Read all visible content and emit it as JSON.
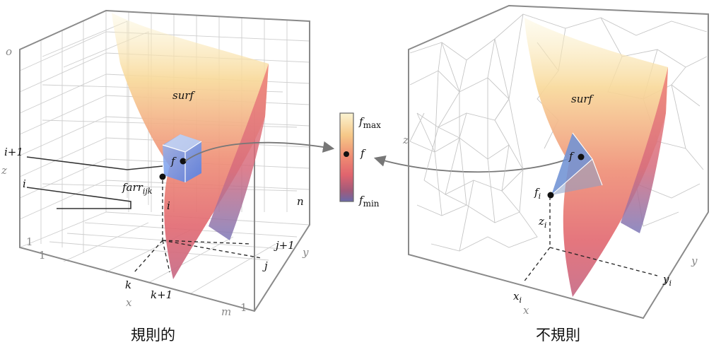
{
  "left_panel": {
    "caption": "規則的",
    "surface_label": "surf",
    "point_label": "f",
    "grid_point_label": "farr",
    "grid_point_sub": "ijk",
    "axis_labels": {
      "x": "x",
      "y": "y",
      "z": "z"
    },
    "index_labels": {
      "o": "o",
      "i_plus_1": "i+1",
      "i": "i",
      "one_z": "1",
      "one_x": "1",
      "k": "k",
      "k_plus_1": "k+1",
      "m": "m",
      "one_y": "1",
      "j": "j",
      "j_plus_1": "j+1",
      "n": "n",
      "i_inner": "i"
    }
  },
  "colorbar": {
    "max_label": "f",
    "max_sub": "max",
    "mid_label": "f",
    "min_label": "f",
    "min_sub": "min",
    "colors": [
      "#fbf4d2",
      "#f6c888",
      "#ee8a72",
      "#e0646e",
      "#a05a7a",
      "#6a6aaa"
    ]
  },
  "right_panel": {
    "caption": "不規則",
    "surface_label": "surf",
    "point_label": "f",
    "sample_label": "f",
    "sample_sub": "i",
    "z_sample_label": "z",
    "z_sample_sub": "i",
    "x_sample_label": "x",
    "x_sample_sub": "i",
    "y_sample_label": "y",
    "y_sample_sub": "i",
    "axis_labels": {
      "x": "x",
      "y": "y",
      "z": "z"
    }
  }
}
